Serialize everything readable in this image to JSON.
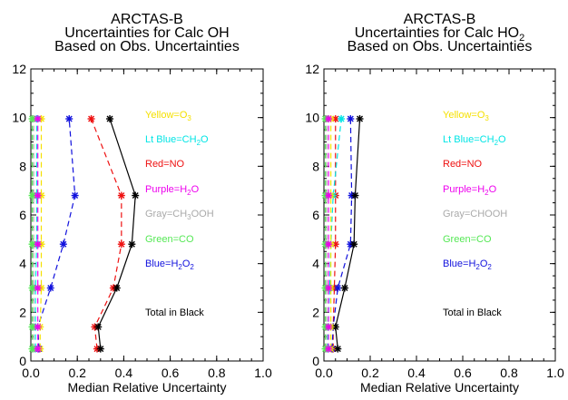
{
  "chart_data": [
    {
      "type": "scatter",
      "title": [
        "ARCTAS-B",
        "Uncertainties for Calc OH",
        "Based on Obs. Uncertainties"
      ],
      "xlabel": "Median Relative Uncertainty",
      "ylabel": "",
      "xlim": [
        0,
        1.0
      ],
      "ylim": [
        0,
        12
      ],
      "xticks": [
        "0.0",
        "0.2",
        "0.4",
        "0.6",
        "0.8",
        "1.0"
      ],
      "yticks": [
        "0",
        "2",
        "4",
        "6",
        "8",
        "10",
        "12"
      ],
      "grid": false,
      "legend_position": "right-inside",
      "legend": [
        {
          "text": "Yellow=O",
          "sub": "3",
          "suffix": "",
          "color": "#f5e000"
        },
        {
          "text": "Lt Blue=CH",
          "sub": "2",
          "suffix": "O",
          "color": "#00e5e5"
        },
        {
          "text": "Red=NO",
          "sub": "",
          "suffix": "",
          "color": "#ee1111"
        },
        {
          "text": "Purple=H",
          "sub": "2",
          "suffix": "O",
          "color": "#ee00ee"
        },
        {
          "text": "Gray=CH",
          "sub": "3",
          "suffix": "OOH",
          "color": "#aaaaaa"
        },
        {
          "text": "Green=CO",
          "sub": "",
          "suffix": "",
          "color": "#55e855"
        },
        {
          "text": "Blue=H",
          "sub": "2",
          "suffix": "O",
          "sub2": "2",
          "color": "#1111dd"
        },
        {
          "text": "Total in Black",
          "sub": "",
          "suffix": "",
          "color": "#000000"
        }
      ],
      "series": [
        {
          "color": "#ee1111",
          "dashed": true,
          "points": [
            [
              0.285,
              0.5
            ],
            [
              0.275,
              1.4
            ],
            [
              0.355,
              3.0
            ],
            [
              0.39,
              4.8
            ],
            [
              0.39,
              6.8
            ],
            [
              0.26,
              9.95
            ]
          ]
        },
        {
          "color": "#000000",
          "dashed": false,
          "points": [
            [
              0.3,
              0.5
            ],
            [
              0.29,
              1.4
            ],
            [
              0.37,
              3.0
            ],
            [
              0.435,
              4.8
            ],
            [
              0.45,
              6.8
            ],
            [
              0.34,
              9.95
            ]
          ]
        },
        {
          "color": "#1111dd",
          "dashed": true,
          "points": [
            [
              0.035,
              0.5
            ],
            [
              0.03,
              1.4
            ],
            [
              0.085,
              3.0
            ],
            [
              0.14,
              4.8
            ],
            [
              0.19,
              6.8
            ],
            [
              0.165,
              9.95
            ]
          ]
        },
        {
          "color": "#f5e000",
          "dashed": true,
          "points": [
            [
              0.04,
              0.5
            ],
            [
              0.04,
              1.4
            ],
            [
              0.045,
              3.0
            ],
            [
              0.045,
              4.8
            ],
            [
              0.045,
              6.8
            ],
            [
              0.045,
              9.95
            ]
          ]
        },
        {
          "color": "#00e5e5",
          "dashed": true,
          "points": [
            [
              0.02,
              0.5
            ],
            [
              0.02,
              1.4
            ],
            [
              0.02,
              3.0
            ],
            [
              0.025,
              4.8
            ],
            [
              0.025,
              6.8
            ],
            [
              0.025,
              9.95
            ]
          ]
        },
        {
          "color": "#aaaaaa",
          "dashed": true,
          "points": [
            [
              0.012,
              0.5
            ],
            [
              0.012,
              1.4
            ],
            [
              0.012,
              3.0
            ],
            [
              0.012,
              4.8
            ],
            [
              0.012,
              6.8
            ],
            [
              0.012,
              9.95
            ]
          ]
        },
        {
          "color": "#55e855",
          "dashed": true,
          "points": [
            [
              0.006,
              0.5
            ],
            [
              0.006,
              1.4
            ],
            [
              0.006,
              3.0
            ],
            [
              0.006,
              4.8
            ],
            [
              0.006,
              6.8
            ],
            [
              0.006,
              9.95
            ]
          ]
        },
        {
          "color": "#ee00ee",
          "dashed": true,
          "points": [
            [
              0.03,
              0.5
            ],
            [
              0.03,
              1.4
            ],
            [
              0.03,
              3.0
            ],
            [
              0.03,
              4.8
            ],
            [
              0.03,
              6.8
            ],
            [
              0.03,
              9.95
            ]
          ]
        }
      ]
    },
    {
      "type": "scatter",
      "title": [
        "ARCTAS-B",
        "Uncertainties for Calc HO",
        "Based on Obs. Uncertainties"
      ],
      "title_sub": "2",
      "xlabel": "Median Relative Uncertainty",
      "ylabel": "",
      "xlim": [
        0,
        1.0
      ],
      "ylim": [
        0,
        12
      ],
      "xticks": [
        "0.0",
        "0.2",
        "0.4",
        "0.6",
        "0.8",
        "1.0"
      ],
      "yticks": [
        "0",
        "2",
        "4",
        "6",
        "8",
        "10",
        "12"
      ],
      "grid": false,
      "legend_position": "right-inside",
      "legend": [
        {
          "text": "Yellow=O",
          "sub": "3",
          "suffix": "",
          "color": "#f5e000"
        },
        {
          "text": "Lt Blue=CH",
          "sub": "2",
          "suffix": "O",
          "color": "#00e5e5"
        },
        {
          "text": "Red=NO",
          "sub": "",
          "suffix": "",
          "color": "#ee1111"
        },
        {
          "text": "Purple=H",
          "sub": "2",
          "suffix": "O",
          "color": "#ee00ee"
        },
        {
          "text": "Gray=CHOOH",
          "sub": "",
          "suffix": "",
          "color": "#aaaaaa"
        },
        {
          "text": "Green=CO",
          "sub": "",
          "suffix": "",
          "color": "#55e855"
        },
        {
          "text": "Blue=H",
          "sub": "2",
          "suffix": "O",
          "sub2": "2",
          "color": "#1111dd"
        },
        {
          "text": "Total in Black",
          "sub": "",
          "suffix": "",
          "color": "#000000"
        }
      ],
      "series": [
        {
          "color": "#ee1111",
          "dashed": true,
          "points": [
            [
              0.04,
              0.5
            ],
            [
              0.04,
              1.4
            ],
            [
              0.045,
              3.0
            ],
            [
              0.05,
              4.8
            ],
            [
              0.05,
              6.8
            ],
            [
              0.05,
              9.95
            ]
          ]
        },
        {
          "color": "#1111dd",
          "dashed": true,
          "points": [
            [
              0.035,
              0.5
            ],
            [
              0.04,
              1.4
            ],
            [
              0.06,
              3.0
            ],
            [
              0.115,
              4.8
            ],
            [
              0.12,
              6.8
            ],
            [
              0.115,
              9.95
            ]
          ]
        },
        {
          "color": "#000000",
          "dashed": false,
          "points": [
            [
              0.06,
              0.5
            ],
            [
              0.05,
              1.4
            ],
            [
              0.09,
              3.0
            ],
            [
              0.13,
              4.8
            ],
            [
              0.135,
              6.8
            ],
            [
              0.155,
              9.95
            ]
          ]
        },
        {
          "color": "#00e5e5",
          "dashed": true,
          "points": [
            [
              0.015,
              0.5
            ],
            [
              0.018,
              1.4
            ],
            [
              0.025,
              3.0
            ],
            [
              0.03,
              4.8
            ],
            [
              0.04,
              6.8
            ],
            [
              0.075,
              9.95
            ]
          ]
        },
        {
          "color": "#f5e000",
          "dashed": true,
          "points": [
            [
              0.03,
              0.5
            ],
            [
              0.03,
              1.4
            ],
            [
              0.03,
              3.0
            ],
            [
              0.03,
              4.8
            ],
            [
              0.03,
              6.8
            ],
            [
              0.03,
              9.95
            ]
          ]
        },
        {
          "color": "#aaaaaa",
          "dashed": true,
          "points": [
            [
              0.012,
              0.5
            ],
            [
              0.012,
              1.4
            ],
            [
              0.012,
              3.0
            ],
            [
              0.012,
              4.8
            ],
            [
              0.012,
              6.8
            ],
            [
              0.012,
              9.95
            ]
          ]
        },
        {
          "color": "#55e855",
          "dashed": true,
          "points": [
            [
              0.006,
              0.5
            ],
            [
              0.006,
              1.4
            ],
            [
              0.006,
              3.0
            ],
            [
              0.006,
              4.8
            ],
            [
              0.006,
              6.8
            ],
            [
              0.006,
              9.95
            ]
          ]
        },
        {
          "color": "#ee00ee",
          "dashed": true,
          "points": [
            [
              0.02,
              0.5
            ],
            [
              0.02,
              1.4
            ],
            [
              0.02,
              3.0
            ],
            [
              0.02,
              4.8
            ],
            [
              0.02,
              6.8
            ],
            [
              0.02,
              9.95
            ]
          ]
        }
      ]
    }
  ]
}
